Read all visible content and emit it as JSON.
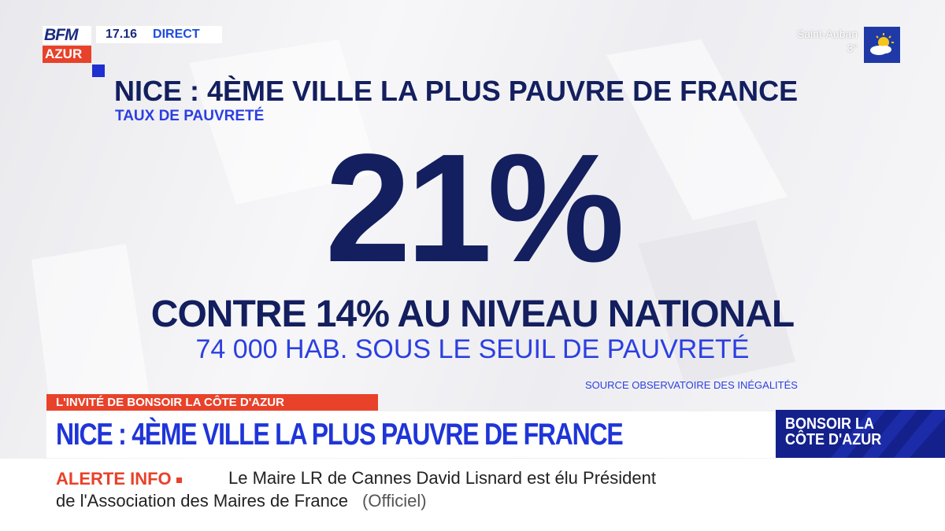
{
  "header": {
    "logo_top": "BFM",
    "logo_bottom": "AZUR",
    "time": "17.16",
    "live_label": "DIRECT"
  },
  "weather": {
    "city": "Saint-Auban",
    "temperature": "3°",
    "icon": "sun-cloud-icon"
  },
  "graphic": {
    "headline": "NICE : 4ÈME VILLE LA PLUS PAUVRE DE FRANCE",
    "subheading": "TAUX DE PAUVRETÉ",
    "big_value": "21%",
    "comparison": "CONTRE 14% AU NIVEAU NATIONAL",
    "detail": "74 000 HAB. SOUS LE SEUIL DE PAUVRETÉ",
    "source": "SOURCE  OBSERVATOIRE DES INÉGALITÉS"
  },
  "lower_third": {
    "program_tag": "L'INVITÉ DE BONSOIR LA CÔTE D'AZUR",
    "title": "NICE : 4ÈME VILLE LA PLUS PAUVRE DE FRANCE",
    "show_name": "BONSOIR LA CÔTE D'AZUR"
  },
  "ticker": {
    "alert_label": "ALERTE INFO",
    "line1": "Le Maire LR de Cannes David Lisnard est élu Président",
    "line2": "de l'Association des Maires de France",
    "source": "(Officiel)"
  },
  "colors": {
    "navy": "#131f5e",
    "blue": "#2c3fe0",
    "red": "#e8422a",
    "show_bg": "#14218c"
  }
}
